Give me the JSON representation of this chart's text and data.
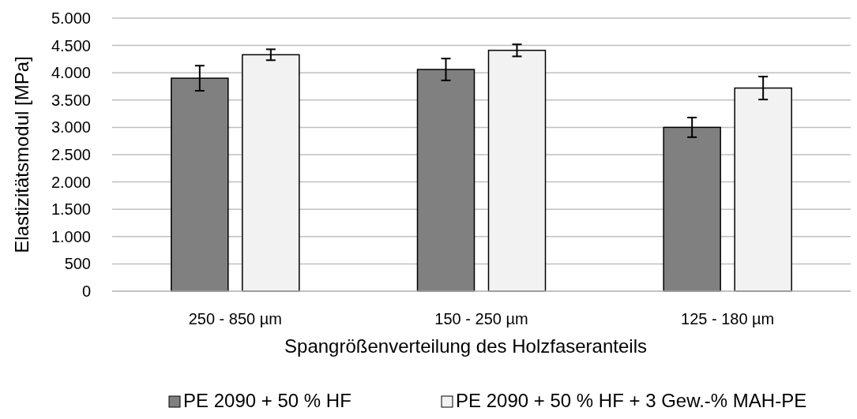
{
  "chart_data": {
    "type": "bar",
    "xlabel": "Spangrößenverteilung des Holzfaseranteils",
    "ylabel": "Elastizitätsmodul [MPa]",
    "categories": [
      "250 - 850 µm",
      "150 - 250 µm",
      "125 - 180 µm"
    ],
    "series": [
      {
        "name": "PE 2090 + 50 % HF",
        "color": "#808080",
        "values": [
          3900,
          4060,
          3000
        ],
        "errors": [
          230,
          200,
          180
        ]
      },
      {
        "name": "PE 2090 + 50 % HF + 3 Gew.-% MAH-PE",
        "color": "#f2f2f2",
        "values": [
          4330,
          4410,
          3720
        ],
        "errors": [
          100,
          110,
          210
        ]
      }
    ],
    "ylim": [
      0,
      5000
    ],
    "yticks": [
      {
        "value": 0,
        "label": "0"
      },
      {
        "value": 500,
        "label": "500"
      },
      {
        "value": 1000,
        "label": "1.000"
      },
      {
        "value": 1500,
        "label": "1.500"
      },
      {
        "value": 2000,
        "label": "2.000"
      },
      {
        "value": 2500,
        "label": "2.500"
      },
      {
        "value": 3000,
        "label": "3.000"
      },
      {
        "value": 3500,
        "label": "3.500"
      },
      {
        "value": 4000,
        "label": "4.000"
      },
      {
        "value": 4500,
        "label": "4.500"
      },
      {
        "value": 5000,
        "label": "5.000"
      }
    ],
    "grid": "y",
    "legend": "bottom"
  }
}
